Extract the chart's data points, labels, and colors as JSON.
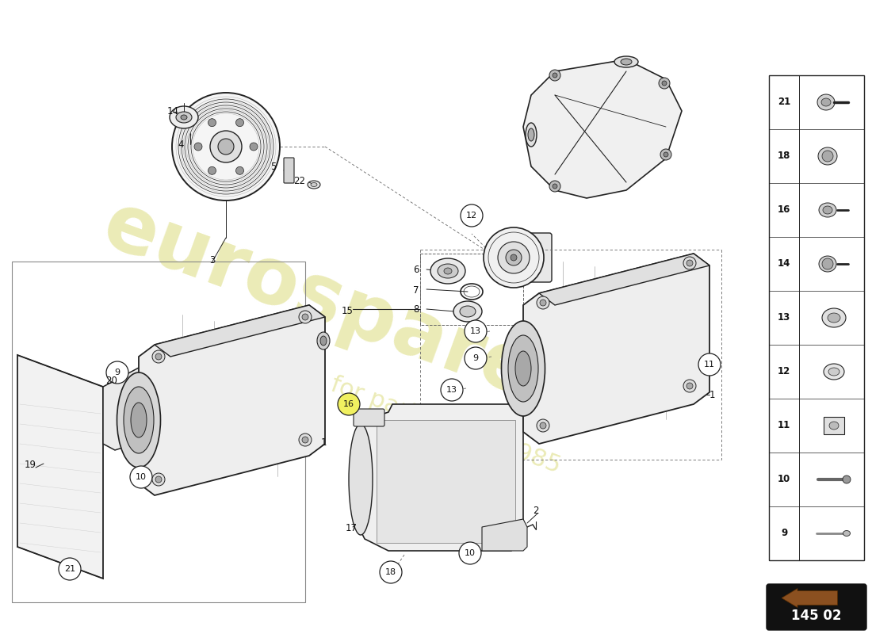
{
  "bg_color": "#ffffff",
  "part_number": "145 02",
  "watermark_color": "#d8d870",
  "line_color": "#222222",
  "thin_line": 0.6,
  "med_line": 1.0,
  "thick_line": 1.4,
  "fig_width": 11.0,
  "fig_height": 8.0,
  "sidebar_items": [
    {
      "id": "21",
      "shape": "bolt_cap"
    },
    {
      "id": "18",
      "shape": "bolt_dome"
    },
    {
      "id": "16",
      "shape": "bolt_hex_flange"
    },
    {
      "id": "14",
      "shape": "bolt_socket_cap"
    },
    {
      "id": "13",
      "shape": "nut_hex"
    },
    {
      "id": "12",
      "shape": "spacer_ring"
    },
    {
      "id": "11",
      "shape": "nut_nylon"
    },
    {
      "id": "10",
      "shape": "pin_dowel"
    },
    {
      "id": "9",
      "shape": "stud"
    }
  ]
}
